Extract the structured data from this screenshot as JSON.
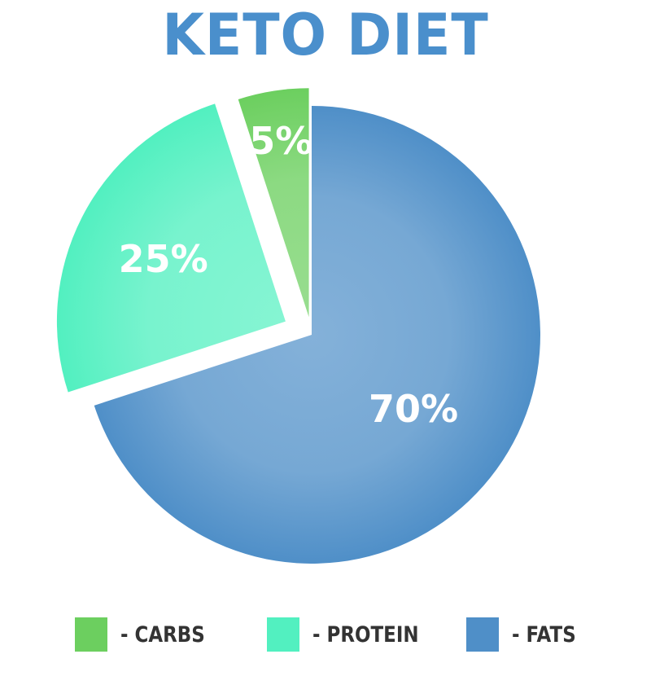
{
  "chart_data": {
    "type": "pie",
    "title": "KETO DIET",
    "slices": [
      {
        "label": "- CARBS",
        "value": 5,
        "data_label": "5%",
        "color": "#6ccf5f",
        "exploded": true
      },
      {
        "label": "- PROTEIN",
        "value": 25,
        "data_label": "25%",
        "color": "#52f0c0",
        "exploded": true
      },
      {
        "label": "- FATS",
        "value": 70,
        "data_label": "70%",
        "color": "#4f8fc8",
        "exploded": false
      }
    ],
    "legend_position": "bottom"
  }
}
